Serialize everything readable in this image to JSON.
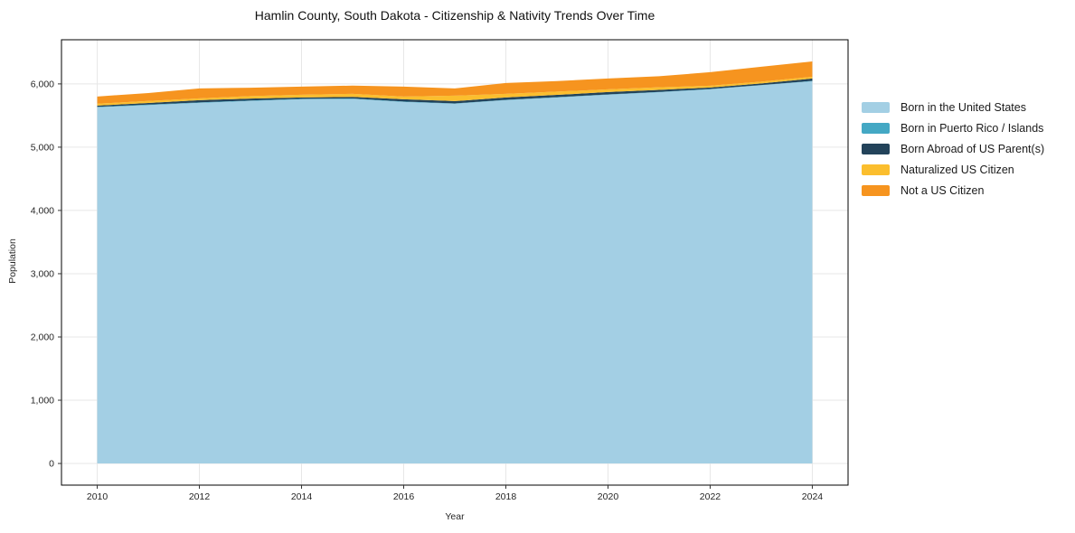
{
  "page": {
    "background": "#ffffff"
  },
  "chart_data": {
    "type": "area",
    "stacked": true,
    "title": "Hamlin County, South Dakota - Citizenship & Nativity Trends Over Time",
    "xlabel": "Year",
    "ylabel": "Population",
    "x": [
      2010,
      2011,
      2012,
      2013,
      2014,
      2015,
      2016,
      2017,
      2018,
      2019,
      2020,
      2021,
      2022,
      2023,
      2024
    ],
    "series": [
      {
        "name": "Born in the United States",
        "color": "#a3cfe4",
        "values": [
          5630,
          5665,
          5700,
          5730,
          5757,
          5762,
          5714,
          5686,
          5743,
          5785,
          5828,
          5868,
          5914,
          5978,
          6042
        ]
      },
      {
        "name": "Born in Puerto Rico / Islands",
        "color": "#44a8c4",
        "values": [
          8,
          8,
          8,
          8,
          8,
          8,
          8,
          6,
          6,
          6,
          6,
          6,
          5,
          5,
          6
        ]
      },
      {
        "name": "Born Abroad of US Parent(s)",
        "color": "#23435a",
        "values": [
          20,
          25,
          35,
          30,
          21,
          25,
          35,
          36,
          37,
          35,
          37,
          32,
          24,
          25,
          37
        ]
      },
      {
        "name": "Naturalized US Citizen",
        "color": "#fbbe2e",
        "values": [
          29,
          32,
          28,
          40,
          42,
          48,
          43,
          86,
          57,
          52,
          43,
          40,
          28,
          28,
          28
        ]
      },
      {
        "name": "Not a US Citizen",
        "color": "#f6941f",
        "values": [
          114,
          126,
          157,
          132,
          129,
          130,
          157,
          114,
          171,
          167,
          171,
          175,
          214,
          235,
          243
        ]
      }
    ],
    "totals": [
      5801,
      5856,
      5928,
      5940,
      5957,
      5973,
      5957,
      5928,
      6014,
      6045,
      6085,
      6121,
      6185,
      6271,
      6356
    ],
    "xticks": [
      2010,
      2012,
      2014,
      2016,
      2018,
      2020,
      2022,
      2024
    ],
    "yticks": [
      0,
      1000,
      2000,
      3000,
      4000,
      5000,
      6000
    ],
    "ytick_labels": [
      "0",
      "1,000",
      "2,000",
      "3,000",
      "4,000",
      "5,000",
      "6,000"
    ],
    "xlim": [
      2009.3,
      2024.7
    ],
    "ylim": [
      -342,
      6698
    ],
    "grid": true,
    "legend_position": "right-outside"
  },
  "style": {
    "grid_color": "#e7e7e7",
    "spine_color": "#000000",
    "tick_color": "#333333",
    "tick_label_color": "#262626",
    "title_color": "#111111"
  }
}
